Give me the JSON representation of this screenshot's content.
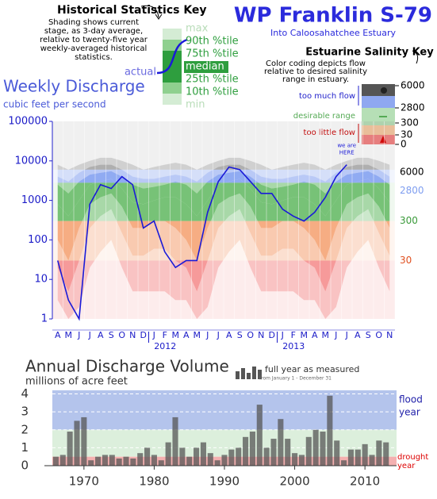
{
  "title": "WP Franklin S-79",
  "subtitle": "Into Caloosahatchee Estuary",
  "stats_key": {
    "title": "Historical Statistics Key",
    "lines": [
      "Shading shows current",
      "stage, as 3-day average,",
      "relative to twenty-five year",
      "weekly-averaged historical",
      "statistics."
    ],
    "labels": [
      "max",
      "90th %tile",
      "75th %tile",
      "median",
      "25th %tile",
      "10th %tile",
      "min"
    ],
    "actual": "actual"
  },
  "salinity_key": {
    "title": "Estuarine Salinity Key",
    "lines": [
      "Color coding depicts flow",
      "relative to desired salinity",
      "range in estuary."
    ],
    "zone_labels": [
      "too much flow",
      "desirable range",
      "too little flow"
    ],
    "thresholds": [
      6000,
      2800,
      300,
      30,
      0
    ]
  },
  "chart_data": [
    {
      "type": "line",
      "title": "Weekly Discharge",
      "y_label": "cubic feet per second",
      "categories": [
        "A",
        "M",
        "J",
        "J",
        "A",
        "S",
        "O",
        "N",
        "D",
        "J",
        "F",
        "M",
        "A",
        "M",
        "J",
        "J",
        "A",
        "S",
        "O",
        "N",
        "D",
        "J",
        "F",
        "M",
        "A",
        "M",
        "J",
        "J",
        "A",
        "S",
        "O",
        "N"
      ],
      "year_labels": [
        2012,
        2013
      ],
      "series": [
        {
          "name": "actual",
          "color": "#1a1ad8",
          "values": [
            30,
            3,
            1,
            800,
            2500,
            2000,
            4000,
            2500,
            200,
            300,
            50,
            20,
            30,
            30,
            500,
            3000,
            7000,
            6000,
            3000,
            1500,
            1500,
            600,
            400,
            300,
            500,
            1200,
            4000,
            8000,
            null,
            null,
            null,
            null
          ]
        }
      ],
      "historical": [
        {
          "name": "max",
          "values": [
            8000,
            6000,
            8000,
            10000,
            12000,
            12000,
            10000,
            8000,
            6000,
            7000,
            8000,
            9000
          ]
        },
        {
          "name": "90th %tile",
          "values": [
            4000,
            3000,
            5000,
            7000,
            8000,
            8000,
            6000,
            4000,
            3500,
            3500,
            4000,
            4500
          ]
        },
        {
          "name": "75th %tile",
          "values": [
            2500,
            1500,
            3000,
            4500,
            5000,
            5500,
            4000,
            2500,
            2000,
            2200,
            2500,
            3000
          ]
        },
        {
          "name": "median",
          "values": [
            800,
            400,
            1000,
            2500,
            3000,
            3500,
            2000,
            900,
            800,
            1000,
            1200,
            1200
          ]
        },
        {
          "name": "25th %tile",
          "values": [
            100,
            30,
            200,
            800,
            1200,
            1500,
            700,
            200,
            200,
            300,
            300,
            200
          ]
        },
        {
          "name": "10th %tile",
          "values": [
            20,
            5,
            30,
            200,
            400,
            600,
            150,
            40,
            40,
            60,
            60,
            30
          ]
        },
        {
          "name": "min",
          "values": [
            3,
            1,
            2,
            20,
            50,
            100,
            20,
            5,
            5,
            5,
            5,
            3
          ]
        }
      ],
      "zone_thresholds": [
        6000,
        2800,
        300,
        30,
        0
      ],
      "zone_colors": [
        "#6e6e6e",
        "#7f9ef0",
        "#62b862",
        "#f4a070",
        "#f04848"
      ],
      "ylim": [
        1,
        100000
      ],
      "yticks": [
        1,
        10,
        100,
        1000,
        10000,
        100000
      ],
      "log_scale": true,
      "annotation": [
        "we are",
        "HERE"
      ]
    },
    {
      "type": "bar",
      "title": "Annual Discharge Volume",
      "y_label": "millions of acre feet",
      "legend": [
        "full year as measured",
        "from January 1 - December 31"
      ],
      "x": [
        1966,
        1967,
        1968,
        1969,
        1970,
        1971,
        1972,
        1973,
        1974,
        1975,
        1976,
        1977,
        1978,
        1979,
        1980,
        1981,
        1982,
        1983,
        1984,
        1985,
        1986,
        1987,
        1988,
        1989,
        1990,
        1991,
        1992,
        1993,
        1994,
        1995,
        1996,
        1997,
        1998,
        1999,
        2000,
        2001,
        2002,
        2003,
        2004,
        2005,
        2006,
        2007,
        2008,
        2009,
        2010,
        2011,
        2012,
        2013
      ],
      "values": [
        0.5,
        0.6,
        1.9,
        2.5,
        2.7,
        0.3,
        0.5,
        0.6,
        0.6,
        0.4,
        0.5,
        0.4,
        0.7,
        1.0,
        0.6,
        0.3,
        1.3,
        2.7,
        1.0,
        0.5,
        1.0,
        1.3,
        0.7,
        0.3,
        0.6,
        0.9,
        1.0,
        1.6,
        1.9,
        3.4,
        1.0,
        1.5,
        2.6,
        1.5,
        0.7,
        0.6,
        1.6,
        2.0,
        1.9,
        3.9,
        1.4,
        0.3,
        0.9,
        0.9,
        1.2,
        0.6,
        1.4,
        1.3
      ],
      "color": "#555555",
      "xlim": [
        1965.5,
        2014.5
      ],
      "xticks": [
        1970,
        1980,
        1990,
        2000,
        2010
      ],
      "ylim": [
        0,
        4.2
      ],
      "yticks": [
        0,
        1,
        2,
        3,
        4
      ],
      "flood_threshold": 2,
      "drought_threshold": 0.5,
      "flood_label": [
        "flood",
        "year"
      ],
      "drought_label": [
        "drought",
        "year"
      ]
    }
  ]
}
